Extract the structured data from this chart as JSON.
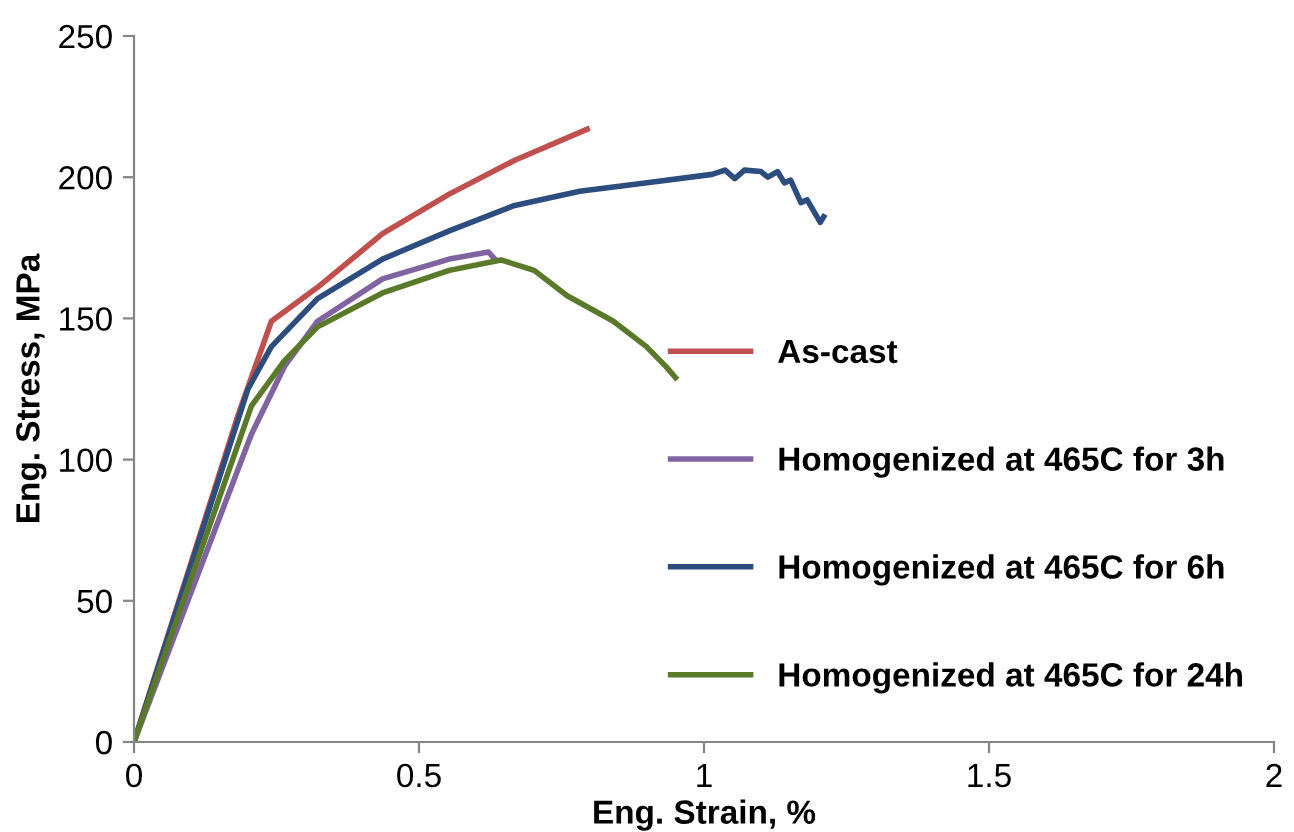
{
  "chart_data": {
    "type": "line",
    "xlabel": "Eng. Strain, %",
    "ylabel": "Eng. Stress, MPa",
    "xlim": [
      0,
      2
    ],
    "xticks": [
      0,
      0.5,
      1,
      1.5,
      2
    ],
    "ylim": [
      0,
      250
    ],
    "yticks": [
      0,
      50,
      100,
      150,
      200,
      250
    ],
    "grid": false,
    "legend": "right",
    "marker": "none",
    "line_style": "solid",
    "series": [
      {
        "name": "As-cast",
        "color": "#c0504d",
        "x": [
          0,
          0.183,
          0.241,
          0.322,
          0.436,
          0.553,
          0.668,
          0.795
        ],
        "values": [
          0,
          116,
          149,
          161,
          180,
          194,
          206,
          217
        ]
      },
      {
        "name": "Homogenized at 465C for 3h",
        "color": "#8064a2",
        "x": [
          0,
          0.206,
          0.264,
          0.322,
          0.436,
          0.553,
          0.622,
          0.633
        ],
        "values": [
          0,
          109,
          133,
          149,
          164,
          171,
          173.5,
          171
        ]
      },
      {
        "name": "Homogenized at 465C for 6h",
        "color": "#2c4d7e",
        "x": [
          0,
          0.2,
          0.241,
          0.322,
          0.436,
          0.553,
          0.668,
          0.782,
          0.9,
          1.014,
          1.037,
          1.054,
          1.071,
          1.1,
          1.112,
          1.129,
          1.141,
          1.152,
          1.17,
          1.181,
          1.204,
          1.21
        ],
        "values": [
          0,
          125,
          140,
          157,
          171,
          181,
          190,
          195,
          198,
          201,
          202.5,
          199.5,
          202.5,
          202,
          200,
          202,
          198,
          199,
          191,
          192,
          184,
          186
        ]
      },
      {
        "name": "Homogenized at 465C for 24h",
        "color": "#5a7a2a",
        "x": [
          0,
          0.206,
          0.264,
          0.322,
          0.436,
          0.553,
          0.644,
          0.702,
          0.76,
          0.841,
          0.899,
          0.933,
          0.95
        ],
        "values": [
          0,
          119,
          135,
          147,
          159,
          167,
          170.7,
          167,
          158,
          149,
          140,
          133,
          129
        ]
      }
    ]
  }
}
